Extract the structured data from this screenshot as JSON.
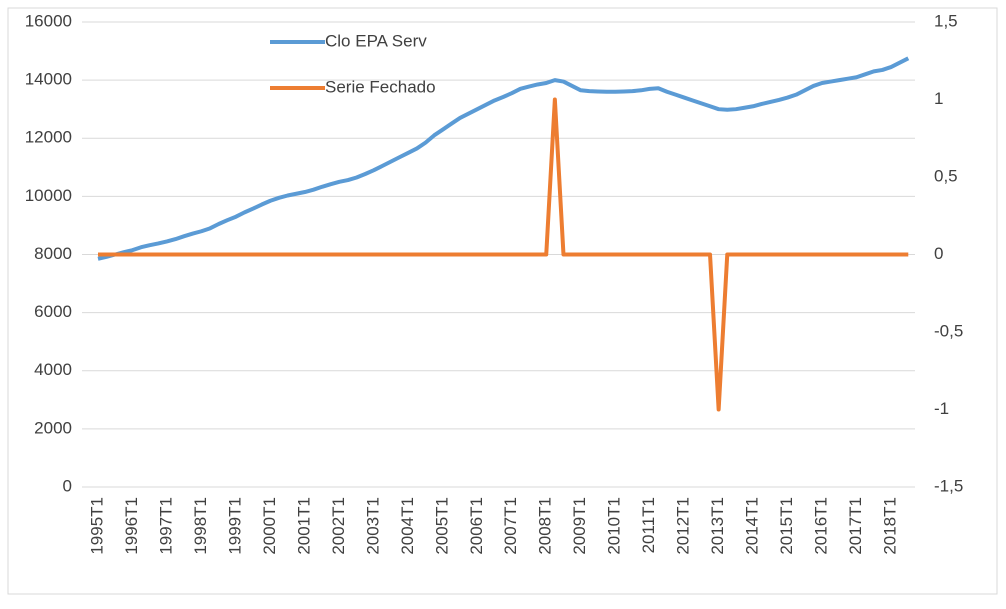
{
  "chart_data": {
    "type": "line",
    "categories": [
      "1995T1",
      null,
      null,
      null,
      "1996T1",
      null,
      null,
      null,
      "1997T1",
      null,
      null,
      null,
      "1998T1",
      null,
      null,
      null,
      "1999T1",
      null,
      null,
      null,
      "2000T1",
      null,
      null,
      null,
      "2001T1",
      null,
      null,
      null,
      "2002T1",
      null,
      null,
      null,
      "2003T1",
      null,
      null,
      null,
      "2004T1",
      null,
      null,
      null,
      "2005T1",
      null,
      null,
      null,
      "2006T1",
      null,
      null,
      null,
      "2007T1",
      null,
      null,
      null,
      "2008T1",
      null,
      null,
      null,
      "2009T1",
      null,
      null,
      null,
      "2010T1",
      null,
      null,
      null,
      "2011T1",
      null,
      null,
      null,
      "2012T1",
      null,
      null,
      null,
      "2013T1",
      null,
      null,
      null,
      "2014T1",
      null,
      null,
      null,
      "2015T1",
      null,
      null,
      null,
      "2016T1",
      null,
      null,
      null,
      "2017T1",
      null,
      null,
      null,
      "2018T1",
      null,
      null
    ],
    "series": [
      {
        "name": "Clo EPA Serv",
        "color": "#5b9bd5",
        "axis": "y",
        "values": [
          7850,
          7920,
          8000,
          8080,
          8150,
          8250,
          8320,
          8380,
          8450,
          8530,
          8630,
          8720,
          8800,
          8900,
          9050,
          9180,
          9300,
          9450,
          9580,
          9720,
          9850,
          9950,
          10030,
          10090,
          10150,
          10230,
          10330,
          10420,
          10500,
          10560,
          10650,
          10770,
          10900,
          11050,
          11200,
          11350,
          11500,
          11650,
          11850,
          12100,
          12300,
          12500,
          12700,
          12850,
          13000,
          13150,
          13300,
          13420,
          13550,
          13700,
          13780,
          13850,
          13900,
          14000,
          13950,
          13800,
          13650,
          13620,
          13610,
          13600,
          13600,
          13610,
          13620,
          13650,
          13700,
          13720,
          13600,
          13500,
          13400,
          13300,
          13200,
          13100,
          13000,
          12980,
          13000,
          13050,
          13100,
          13180,
          13250,
          13320,
          13400,
          13500,
          13650,
          13800,
          13900,
          13950,
          14000,
          14050,
          14100,
          14200,
          14300,
          14350,
          14450,
          14600,
          14750
        ]
      },
      {
        "name": "Serie Fechado",
        "color": "#ed7d31",
        "axis": "y2",
        "values": [
          0,
          0,
          0,
          0,
          0,
          0,
          0,
          0,
          0,
          0,
          0,
          0,
          0,
          0,
          0,
          0,
          0,
          0,
          0,
          0,
          0,
          0,
          0,
          0,
          0,
          0,
          0,
          0,
          0,
          0,
          0,
          0,
          0,
          0,
          0,
          0,
          0,
          0,
          0,
          0,
          0,
          0,
          0,
          0,
          0,
          0,
          0,
          0,
          0,
          0,
          0,
          0,
          0,
          1,
          0,
          0,
          0,
          0,
          0,
          0,
          0,
          0,
          0,
          0,
          0,
          0,
          0,
          0,
          0,
          0,
          0,
          0,
          -1,
          0,
          0,
          0,
          0,
          0,
          0,
          0,
          0,
          0,
          0,
          0,
          0,
          0,
          0,
          0,
          0,
          0,
          0,
          0,
          0,
          0,
          0
        ]
      }
    ],
    "ylim": [
      0,
      16000
    ],
    "yticks": [
      0,
      2000,
      4000,
      6000,
      8000,
      10000,
      12000,
      14000,
      16000
    ],
    "y2lim": [
      -1.5,
      1.5
    ],
    "y2ticks": [
      {
        "value": -1.5,
        "label": "-1,5"
      },
      -1,
      {
        "value": -0.5,
        "label": "-0,5"
      },
      0,
      {
        "value": 0.5,
        "label": "0,5"
      },
      1,
      {
        "value": 1.5,
        "label": "1,5"
      }
    ],
    "grid": true,
    "legend": "upper left"
  }
}
